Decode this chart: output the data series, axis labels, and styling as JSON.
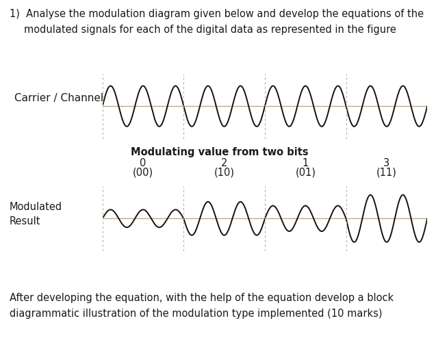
{
  "carrier_label": "Carrier / Channel",
  "modulated_label": "Modulated\nResult",
  "modulating_label": "Modulating value from two bits",
  "symbols": [
    "0",
    "2",
    "1",
    "3"
  ],
  "bit_labels": [
    "(00)",
    "(10)",
    "(01)",
    "(11)"
  ],
  "carrier_freq_per_seg": 2.5,
  "modulated_amplitudes": [
    0.45,
    0.85,
    0.65,
    1.2
  ],
  "n_segments": 4,
  "bg_color": "#ffffff",
  "wave_color": "#111111",
  "axis_line_color": "#c8a87a",
  "dashed_line_color": "#b0b0b0",
  "font_color": "#1a1a1a",
  "font_size_body": 10.5,
  "font_size_label": 10.5,
  "font_size_bold": 10.5
}
